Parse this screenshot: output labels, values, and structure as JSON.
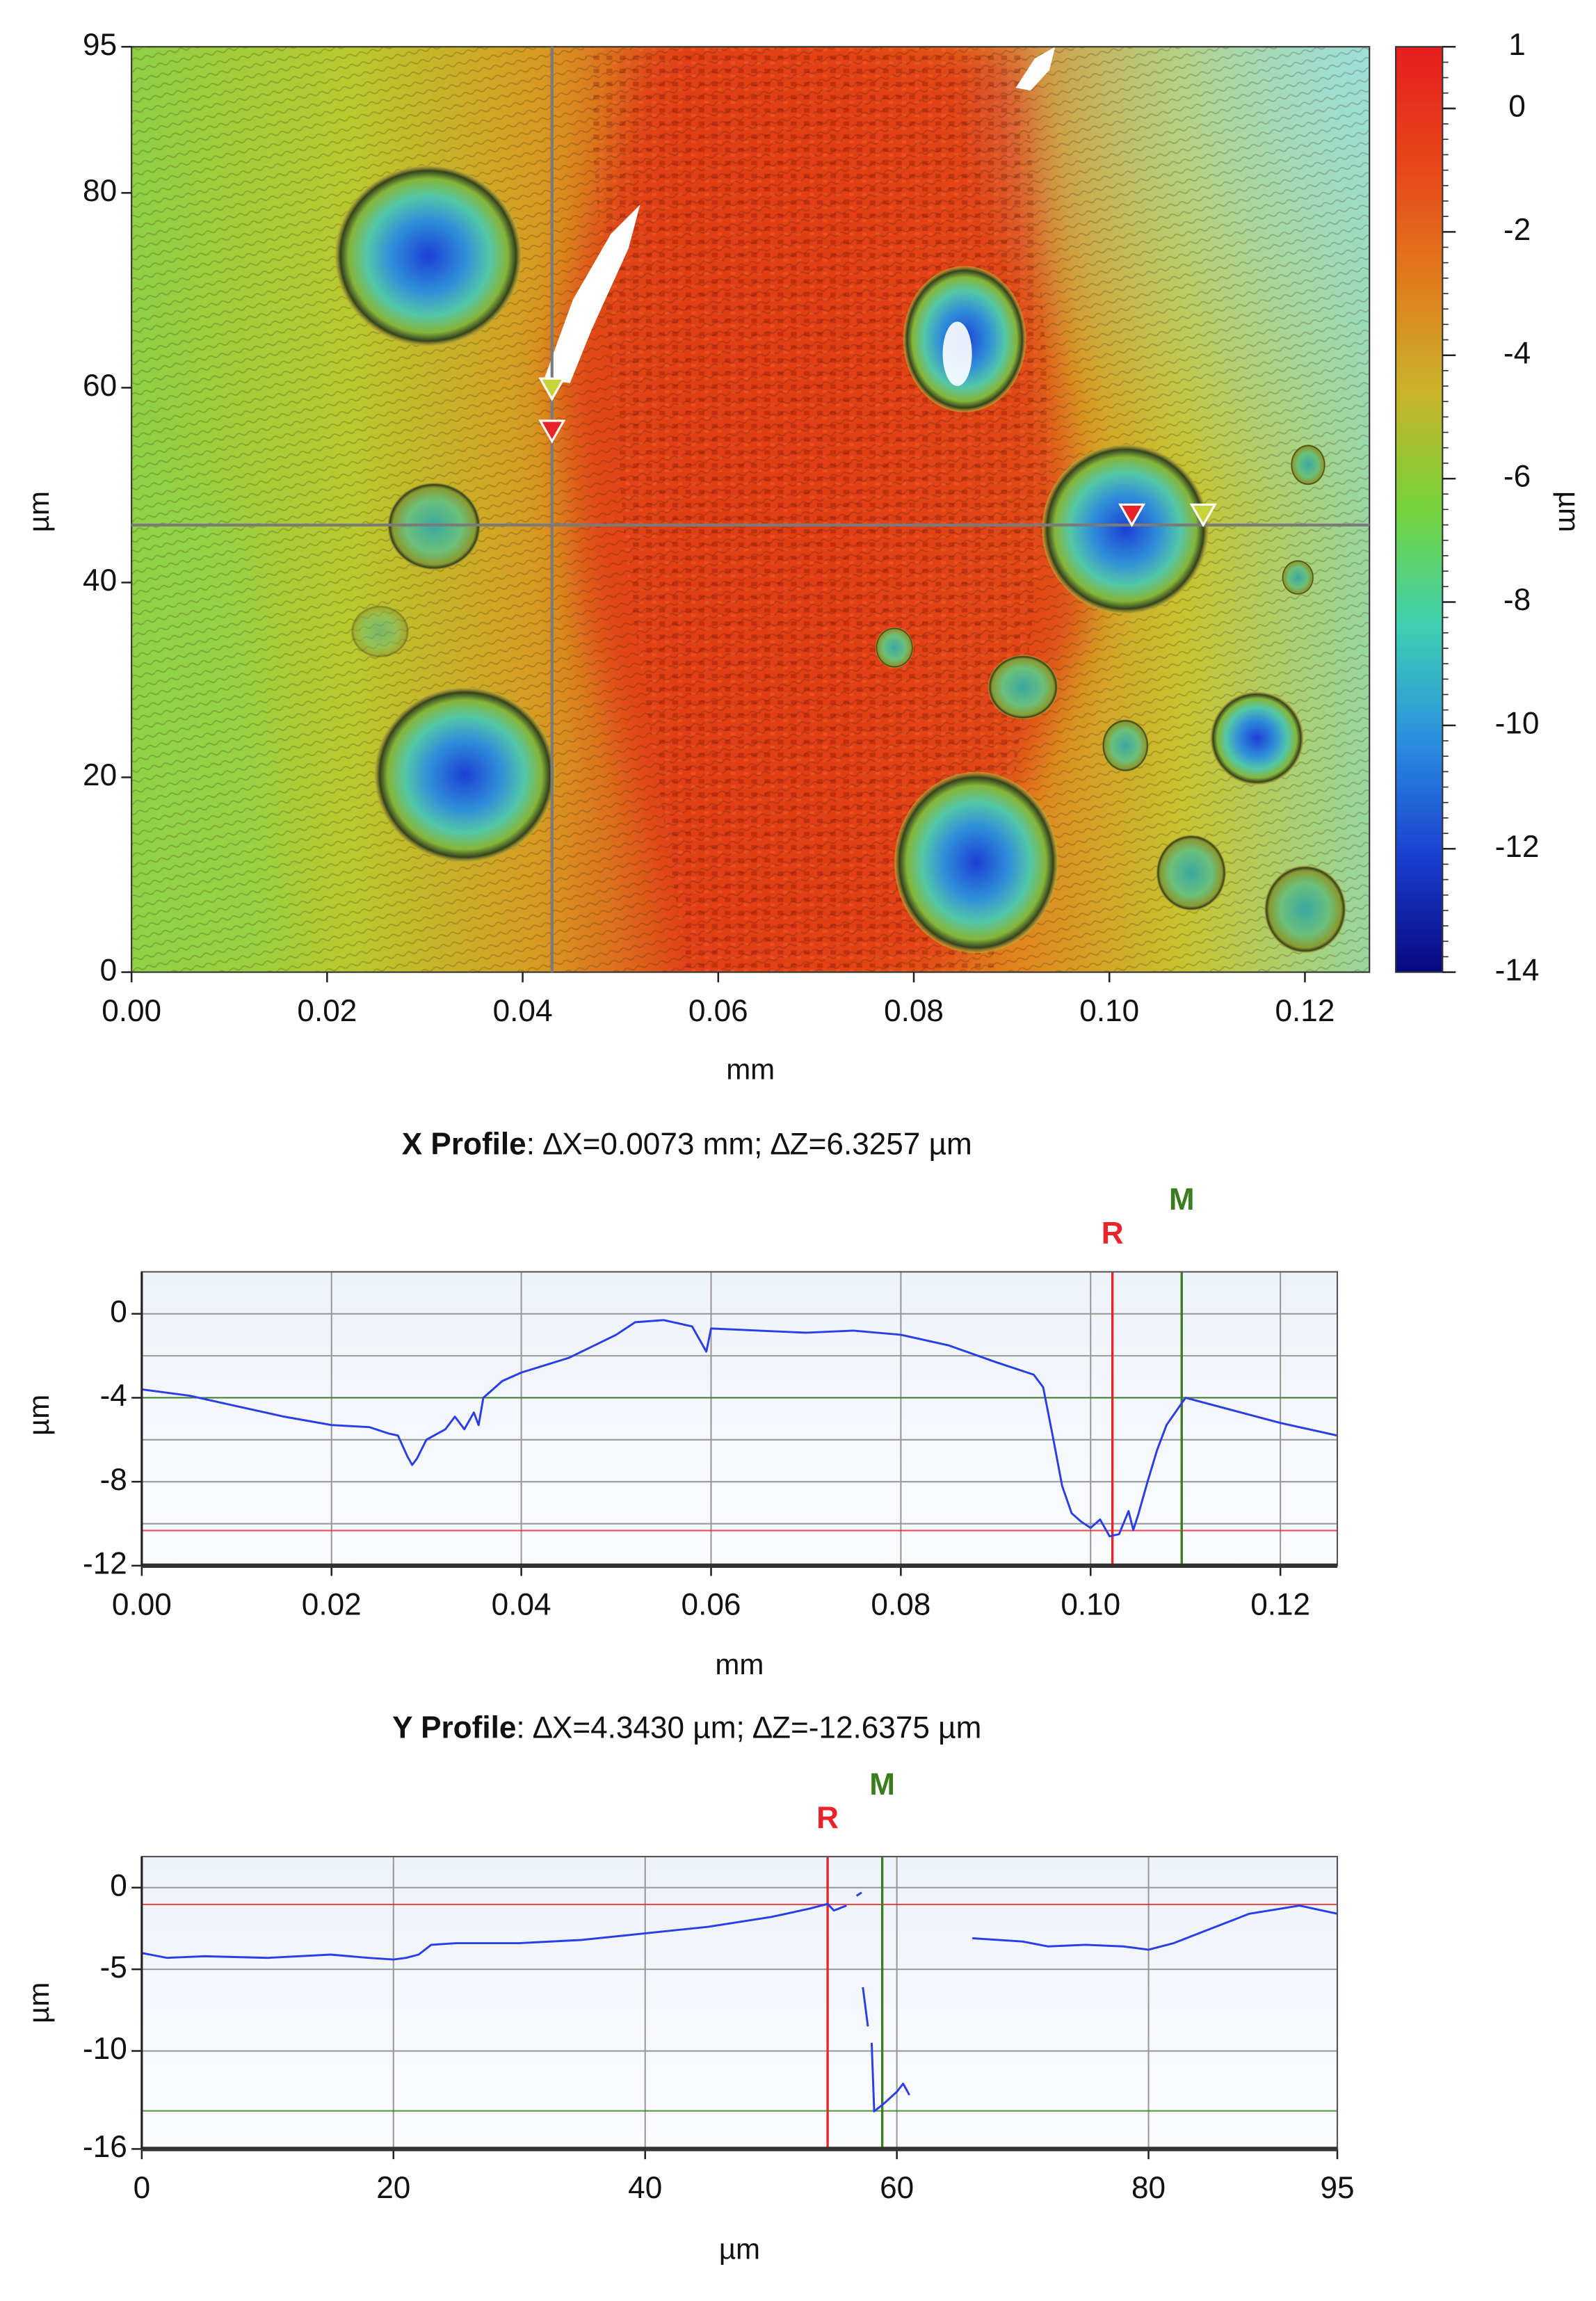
{
  "chart_data": [
    {
      "type": "heatmap",
      "x_label": "mm",
      "y_label": "µm",
      "xlim": [
        0,
        0.1266
      ],
      "xticks": [
        {
          "value": 0,
          "label": "0.00"
        },
        0.02,
        0.04,
        0.06,
        0.08,
        {
          "value": 0.1,
          "label": "0.10"
        },
        0.12
      ],
      "ylim": [
        0,
        95
      ],
      "yticks": [
        0,
        20,
        40,
        60,
        80,
        95
      ],
      "crosshair": {
        "x": 0.043,
        "y": 45.9,
        "color": "#7a7a7a"
      },
      "colorbar": {
        "label": "µm",
        "lim": [
          -14,
          1
        ],
        "ticks": [
          1,
          0,
          -2,
          -4,
          -6,
          -8,
          -10,
          -12,
          -14
        ],
        "colormap": [
          "#e61e1e",
          "#e8451a",
          "#e07a1c",
          "#c9b52a",
          "#74d23a",
          "#3fd0b0",
          "#2a8fe0",
          "#1a3fd0",
          "#08087e"
        ]
      }
    },
    {
      "type": "line",
      "title": "X Profile",
      "readout": ": ∆X=0.0073 mm; ∆Z=6.3257 µm",
      "x_label": "mm",
      "y_label": "µm",
      "xlim": [
        0,
        0.126
      ],
      "xticks": [
        {
          "value": 0,
          "label": "0.00"
        },
        0.02,
        0.04,
        0.06,
        0.08,
        {
          "value": 0.1,
          "label": "0.10"
        },
        0.12
      ],
      "ylim": [
        -12,
        2
      ],
      "yticks": [
        0,
        -4,
        -8,
        -12
      ],
      "grid": true,
      "minor_grid": true,
      "series": [
        {
          "color": "#2a3ee8",
          "x": [
            0,
            0.005,
            0.01,
            0.015,
            0.02,
            0.024,
            0.026,
            0.027,
            0.028,
            0.0285,
            0.029,
            0.03,
            0.032,
            0.033,
            0.034,
            0.035,
            0.0355,
            0.036,
            0.038,
            0.04,
            0.045,
            0.05,
            0.052,
            0.055,
            0.058,
            0.0595,
            0.06,
            0.065,
            0.07,
            0.075,
            0.08,
            0.085,
            0.09,
            0.094,
            0.095,
            0.096,
            0.097,
            0.098,
            0.099,
            0.1,
            0.101,
            0.102,
            0.103,
            0.104,
            0.1045,
            0.105,
            0.106,
            0.107,
            0.108,
            0.11,
            0.115,
            0.12,
            0.126
          ],
          "values": [
            -3.6,
            -3.9,
            -4.4,
            -4.9,
            -5.3,
            -5.4,
            -5.7,
            -5.8,
            -6.8,
            -7.2,
            -6.9,
            -6.0,
            -5.5,
            -4.9,
            -5.5,
            -4.7,
            -5.3,
            -4.0,
            -3.2,
            -2.8,
            -2.1,
            -1.0,
            -0.4,
            -0.3,
            -0.6,
            -1.8,
            -0.7,
            -0.8,
            -0.9,
            -0.8,
            -1.0,
            -1.5,
            -2.3,
            -2.9,
            -3.5,
            -5.8,
            -8.2,
            -9.5,
            -9.9,
            -10.2,
            -9.8,
            -10.6,
            -10.5,
            -9.4,
            -10.3,
            -9.6,
            -8.0,
            -6.5,
            -5.3,
            -4.0,
            -4.6,
            -5.2,
            -5.8
          ]
        }
      ],
      "cursors": [
        {
          "name": "R",
          "color": "#e8232a",
          "x": 0.1023,
          "y": -10.33
        },
        {
          "name": "M",
          "color": "#3a7d1e",
          "x": 0.1096,
          "y": -4.0
        }
      ]
    },
    {
      "type": "line",
      "title": "Y Profile",
      "readout": ": ∆X=4.3430 µm; ∆Z=-12.6375 µm",
      "x_label": "µm",
      "y_label": "µm",
      "xlim": [
        0,
        95
      ],
      "xticks": [
        0,
        20,
        40,
        60,
        80,
        95
      ],
      "ylim": [
        -16,
        1.9
      ],
      "yticks": [
        0,
        -5,
        -10,
        -16
      ],
      "grid": true,
      "minor_grid": false,
      "series": [
        {
          "color": "#2a3ee8",
          "x": [
            0,
            2,
            5,
            10,
            15,
            18,
            20,
            21,
            22,
            23,
            25,
            30,
            35,
            40,
            45,
            50,
            53,
            54.5,
            55,
            56,
            null,
            56.8,
            57.2,
            null,
            57.3,
            57.7,
            null,
            58.0,
            58.2,
            59,
            60,
            60.5,
            61,
            null,
            66,
            70,
            72,
            75,
            78,
            80,
            82,
            85,
            88,
            92,
            95
          ],
          "values": [
            -4.0,
            -4.3,
            -4.2,
            -4.3,
            -4.1,
            -4.3,
            -4.4,
            -4.3,
            -4.1,
            -3.5,
            -3.4,
            -3.4,
            -3.2,
            -2.8,
            -2.4,
            -1.8,
            -1.3,
            -1.0,
            -1.4,
            -1.1,
            null,
            -0.5,
            -0.3,
            null,
            -6.1,
            -8.5,
            null,
            -9.5,
            -13.7,
            -13.2,
            -12.5,
            -12.0,
            -12.7,
            null,
            -3.1,
            -3.3,
            -3.6,
            -3.5,
            -3.6,
            -3.8,
            -3.4,
            -2.5,
            -1.6,
            -1.1,
            -1.6
          ]
        }
      ],
      "cursors": [
        {
          "name": "R",
          "color": "#e8232a",
          "x": 54.5,
          "y": -1.03
        },
        {
          "name": "M",
          "color": "#3a7d1e",
          "x": 58.84,
          "y": -13.67
        }
      ]
    }
  ]
}
